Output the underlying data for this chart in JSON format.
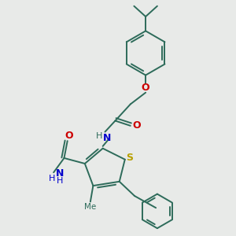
{
  "background_color": "#e8eae8",
  "bond_color": "#2d6b5a",
  "s_color": "#b8a000",
  "o_color": "#cc0000",
  "n_color": "#0000cc",
  "text_color": "#2d6b5a",
  "figsize": [
    3.0,
    3.0
  ],
  "dpi": 100,
  "bond_lw": 1.4,
  "font_size": 8,
  "xlim": [
    0,
    10
  ],
  "ylim": [
    0,
    10
  ]
}
